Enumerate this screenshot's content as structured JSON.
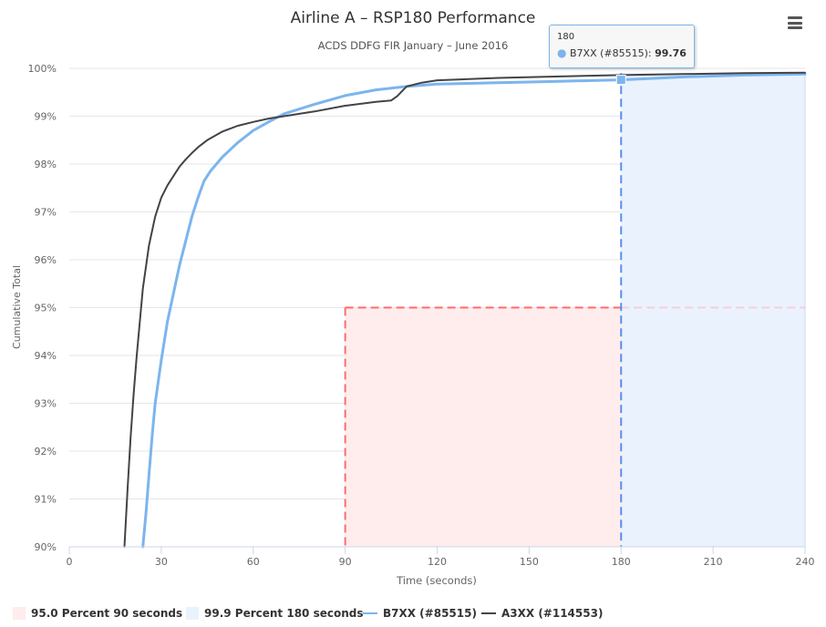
{
  "toolbar": {
    "menu_icon": "hamburger-menu-icon"
  },
  "tooltip": {
    "header": "180",
    "series_name": "B7XX (#85515)",
    "value": "99.76",
    "bullet": "●",
    "separator": ":"
  },
  "colors": {
    "b7xx": "#7cb5ec",
    "a3xx": "#434348",
    "band95": "#ff6b6b",
    "band95_fill": "#ffecec",
    "band999": "#5b8def",
    "band999_fill": "#eaf2fe",
    "grid": "#e6e6e6"
  },
  "chart_data": {
    "type": "line",
    "title": "Airline A – RSP180 Performance",
    "subtitle": "ACDS DDFG FIR January – June 2016",
    "xlabel": "Time (seconds)",
    "ylabel": "Cumulative Total",
    "xlim": [
      0,
      240
    ],
    "ylim": [
      90,
      100
    ],
    "x_ticks": [
      0,
      30,
      60,
      90,
      120,
      150,
      180,
      210,
      240
    ],
    "y_ticks": [
      90,
      91,
      92,
      93,
      94,
      95,
      96,
      97,
      98,
      99,
      100
    ],
    "y_tick_labels": [
      "90%",
      "91%",
      "92%",
      "93%",
      "94%",
      "95%",
      "96%",
      "97%",
      "98%",
      "99%",
      "100%"
    ],
    "grid": true,
    "legend_position": "bottom-left",
    "bands": [
      {
        "name": "95.0 Percent 90 seconds",
        "x_start": 90,
        "x_end": 180,
        "y_top": 95.0,
        "color": "#ff6b6b"
      },
      {
        "name": "99.9 Percent 180 seconds",
        "x_start": 180,
        "x_end": 240,
        "y_top": 99.9,
        "color": "#5b8def"
      }
    ],
    "series": [
      {
        "name": "B7XX (#85515)",
        "color": "#7cb5ec",
        "x": [
          24,
          25,
          26,
          27,
          28,
          30,
          32,
          34,
          36,
          38,
          40,
          42,
          44,
          46,
          48,
          50,
          55,
          60,
          65,
          70,
          80,
          90,
          100,
          110,
          120,
          140,
          160,
          180,
          200,
          220,
          240
        ],
        "y": [
          90.0,
          90.7,
          91.5,
          92.3,
          93.0,
          93.9,
          94.7,
          95.3,
          95.9,
          96.4,
          96.9,
          97.3,
          97.65,
          97.85,
          98.0,
          98.15,
          98.45,
          98.7,
          98.88,
          99.05,
          99.25,
          99.43,
          99.55,
          99.62,
          99.67,
          99.7,
          99.73,
          99.76,
          99.82,
          99.86,
          99.88
        ]
      },
      {
        "name": "A3XX (#114553)",
        "color": "#434348",
        "x": [
          18,
          19,
          20,
          21,
          22,
          24,
          26,
          28,
          30,
          32,
          34,
          36,
          38,
          40,
          42,
          45,
          50,
          55,
          60,
          65,
          70,
          80,
          90,
          100,
          105,
          107,
          110,
          115,
          120,
          140,
          160,
          180,
          200,
          220,
          240
        ],
        "y": [
          90.0,
          91.2,
          92.3,
          93.2,
          94.0,
          95.4,
          96.3,
          96.9,
          97.3,
          97.55,
          97.75,
          97.95,
          98.1,
          98.23,
          98.35,
          98.5,
          98.68,
          98.8,
          98.88,
          98.95,
          99.0,
          99.1,
          99.22,
          99.3,
          99.33,
          99.42,
          99.62,
          99.7,
          99.75,
          99.8,
          99.83,
          99.86,
          99.88,
          99.9,
          99.91
        ]
      }
    ],
    "highlight": {
      "series": "B7XX (#85515)",
      "x": 180,
      "y": 99.76
    }
  }
}
